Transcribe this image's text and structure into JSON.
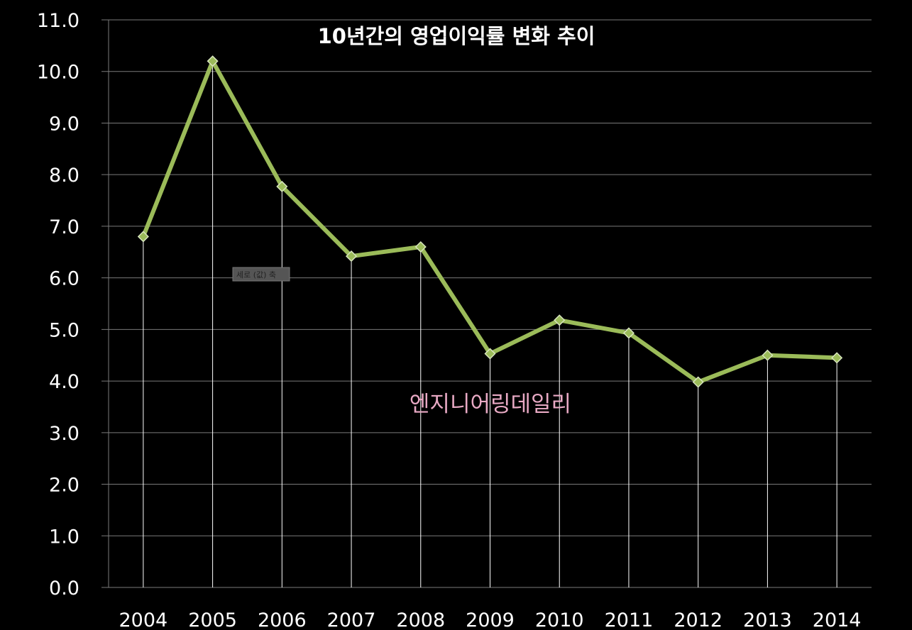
{
  "chart_data": {
    "type": "line",
    "title": "10년간의 영업이익률 변화 추이",
    "categories": [
      "2004",
      "2005",
      "2006",
      "2007",
      "2008",
      "2009",
      "2010",
      "2011",
      "2012",
      "2013",
      "2014"
    ],
    "series": [
      {
        "values": [
          6.8,
          10.2,
          7.77,
          6.42,
          6.6,
          4.53,
          5.18,
          4.93,
          3.98,
          4.5,
          4.45
        ]
      }
    ],
    "ylim": [
      0,
      11
    ],
    "yticks": [
      "0.0",
      "1.0",
      "2.0",
      "3.0",
      "4.0",
      "5.0",
      "6.0",
      "7.0",
      "8.0",
      "9.0",
      "10.0",
      "11.0"
    ],
    "grid": true,
    "drop_lines": true,
    "colors": {
      "background": "#000000",
      "series": "#9bbb59",
      "text": "#ffffff",
      "watermark": "#e8a9c4"
    }
  },
  "watermark": "엔지니어링데일리",
  "tooltip": "세로 (값) 축"
}
